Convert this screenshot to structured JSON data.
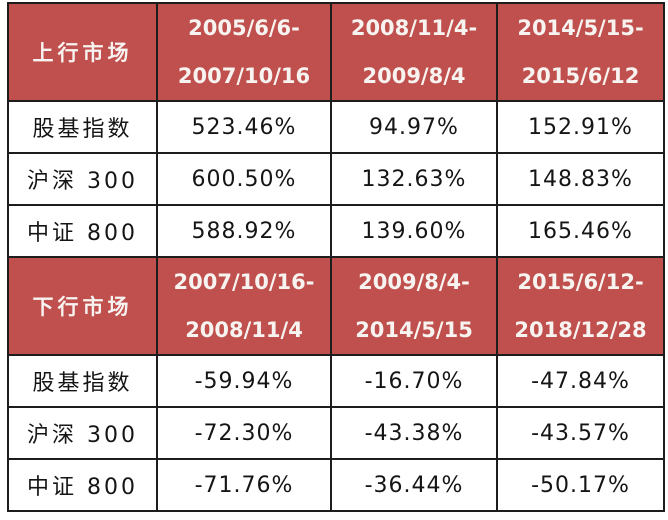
{
  "colors": {
    "header_bg": "#C0504D",
    "header_text": "#F7F3F0",
    "body_text": "#151515",
    "border": "#1D1D1D",
    "background": "#FFFFFF"
  },
  "chart_data": {
    "type": "table",
    "sections": [
      {
        "header_label": "上行市场",
        "periods": [
          {
            "line1": "2005/6/6-",
            "line2": "2007/10/16"
          },
          {
            "line1": "2008/11/4-",
            "line2": "2009/8/4"
          },
          {
            "line1": "2014/5/15-",
            "line2": "2015/6/12"
          }
        ],
        "rows": [
          {
            "label": "股基指数",
            "values": [
              "523.46%",
              "94.97%",
              "152.91%"
            ]
          },
          {
            "label": "沪深 300",
            "values": [
              "600.50%",
              "132.63%",
              "148.83%"
            ]
          },
          {
            "label": "中证 800",
            "values": [
              "588.92%",
              "139.60%",
              "165.46%"
            ]
          }
        ]
      },
      {
        "header_label": "下行市场",
        "periods": [
          {
            "line1": "2007/10/16-",
            "line2": "2008/11/4"
          },
          {
            "line1": "2009/8/4-",
            "line2": "2014/5/15"
          },
          {
            "line1": "2015/6/12-",
            "line2": "2018/12/28"
          }
        ],
        "rows": [
          {
            "label": "股基指数",
            "values": [
              "-59.94%",
              "-16.70%",
              "-47.84%"
            ]
          },
          {
            "label": "沪深 300",
            "values": [
              "-72.30%",
              "-43.38%",
              "-43.57%"
            ]
          },
          {
            "label": "中证 800",
            "values": [
              "-71.76%",
              "-36.44%",
              "-50.17%"
            ]
          }
        ]
      }
    ]
  }
}
